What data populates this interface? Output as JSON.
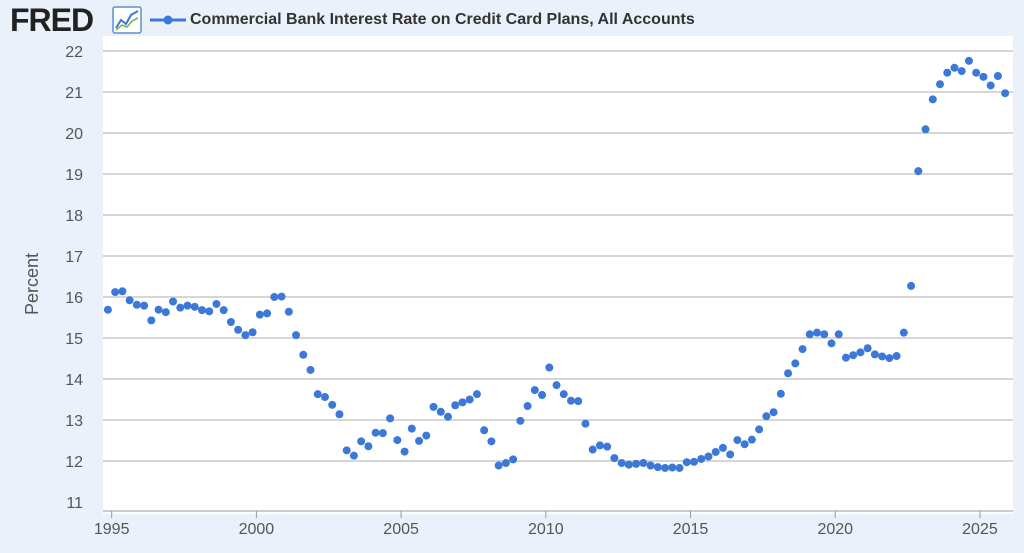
{
  "header": {
    "logo_text": "FRED",
    "legend_label": "Commercial Bank Interest Rate on Credit Card Plans, All Accounts"
  },
  "colors": {
    "series": "#3c78d8",
    "grid": "#c8c8c8",
    "background": "#ebf1fa",
    "plot_background": "#ffffff"
  },
  "chart_data": {
    "type": "scatter",
    "title": "",
    "xlabel": "",
    "ylabel": "Percent",
    "xlim": [
      1994.7,
      2025.9
    ],
    "ylim": [
      11,
      22
    ],
    "x_ticks": [
      "1995",
      "2000",
      "2005",
      "2010",
      "2015",
      "2020",
      "2025"
    ],
    "y_ticks": [
      "11",
      "12",
      "13",
      "14",
      "15",
      "16",
      "17",
      "18",
      "19",
      "20",
      "21",
      "22"
    ],
    "grid": "horizontal",
    "legend": "top-left",
    "series": [
      {
        "name": "Commercial Bank Interest Rate on Credit Card Plans, All Accounts",
        "points": [
          [
            1994.87,
            15.69
          ],
          [
            1995.12,
            16.12
          ],
          [
            1995.37,
            16.14
          ],
          [
            1995.62,
            15.92
          ],
          [
            1995.87,
            15.81
          ],
          [
            1996.12,
            15.79
          ],
          [
            1996.37,
            15.43
          ],
          [
            1996.62,
            15.69
          ],
          [
            1996.87,
            15.63
          ],
          [
            1997.12,
            15.89
          ],
          [
            1997.37,
            15.74
          ],
          [
            1997.62,
            15.79
          ],
          [
            1997.87,
            15.76
          ],
          [
            1998.12,
            15.68
          ],
          [
            1998.37,
            15.65
          ],
          [
            1998.62,
            15.83
          ],
          [
            1998.87,
            15.68
          ],
          [
            1999.12,
            15.39
          ],
          [
            1999.37,
            15.2
          ],
          [
            1999.62,
            15.07
          ],
          [
            1999.87,
            15.14
          ],
          [
            2000.12,
            15.57
          ],
          [
            2000.37,
            15.6
          ],
          [
            2000.62,
            16.0
          ],
          [
            2000.87,
            16.01
          ],
          [
            2001.12,
            15.64
          ],
          [
            2001.37,
            15.07
          ],
          [
            2001.62,
            14.59
          ],
          [
            2001.87,
            14.22
          ],
          [
            2002.12,
            13.63
          ],
          [
            2002.37,
            13.56
          ],
          [
            2002.62,
            13.37
          ],
          [
            2002.87,
            13.14
          ],
          [
            2003.12,
            12.26
          ],
          [
            2003.37,
            12.13
          ],
          [
            2003.62,
            12.48
          ],
          [
            2003.87,
            12.36
          ],
          [
            2004.12,
            12.69
          ],
          [
            2004.37,
            12.68
          ],
          [
            2004.62,
            13.04
          ],
          [
            2004.87,
            12.51
          ],
          [
            2005.12,
            12.23
          ],
          [
            2005.37,
            12.79
          ],
          [
            2005.62,
            12.49
          ],
          [
            2005.87,
            12.62
          ],
          [
            2006.12,
            13.32
          ],
          [
            2006.37,
            13.2
          ],
          [
            2006.62,
            13.08
          ],
          [
            2006.87,
            13.36
          ],
          [
            2007.12,
            13.43
          ],
          [
            2007.37,
            13.5
          ],
          [
            2007.62,
            13.63
          ],
          [
            2007.87,
            12.75
          ],
          [
            2008.12,
            12.48
          ],
          [
            2008.37,
            11.89
          ],
          [
            2008.62,
            11.95
          ],
          [
            2008.87,
            12.04
          ],
          [
            2009.12,
            12.98
          ],
          [
            2009.37,
            13.34
          ],
          [
            2009.62,
            13.73
          ],
          [
            2009.87,
            13.61
          ],
          [
            2010.12,
            14.28
          ],
          [
            2010.37,
            13.85
          ],
          [
            2010.62,
            13.63
          ],
          [
            2010.87,
            13.47
          ],
          [
            2011.12,
            13.46
          ],
          [
            2011.37,
            12.91
          ],
          [
            2011.62,
            12.28
          ],
          [
            2011.87,
            12.38
          ],
          [
            2012.12,
            12.35
          ],
          [
            2012.37,
            12.07
          ],
          [
            2012.62,
            11.95
          ],
          [
            2012.87,
            11.91
          ],
          [
            2013.12,
            11.93
          ],
          [
            2013.37,
            11.95
          ],
          [
            2013.62,
            11.89
          ],
          [
            2013.87,
            11.85
          ],
          [
            2014.12,
            11.83
          ],
          [
            2014.37,
            11.84
          ],
          [
            2014.62,
            11.83
          ],
          [
            2014.87,
            11.97
          ],
          [
            2015.12,
            11.98
          ],
          [
            2015.37,
            12.05
          ],
          [
            2015.62,
            12.11
          ],
          [
            2015.87,
            12.22
          ],
          [
            2016.12,
            12.32
          ],
          [
            2016.37,
            12.16
          ],
          [
            2016.62,
            12.51
          ],
          [
            2016.87,
            12.41
          ],
          [
            2017.12,
            12.52
          ],
          [
            2017.37,
            12.77
          ],
          [
            2017.62,
            13.09
          ],
          [
            2017.87,
            13.19
          ],
          [
            2018.12,
            13.64
          ],
          [
            2018.37,
            14.14
          ],
          [
            2018.62,
            14.38
          ],
          [
            2018.87,
            14.73
          ],
          [
            2019.12,
            15.09
          ],
          [
            2019.37,
            15.13
          ],
          [
            2019.62,
            15.09
          ],
          [
            2019.87,
            14.87
          ],
          [
            2020.12,
            15.09
          ],
          [
            2020.37,
            14.52
          ],
          [
            2020.62,
            14.58
          ],
          [
            2020.87,
            14.65
          ],
          [
            2021.12,
            14.75
          ],
          [
            2021.37,
            14.6
          ],
          [
            2021.62,
            14.55
          ],
          [
            2021.87,
            14.51
          ],
          [
            2022.12,
            14.56
          ],
          [
            2022.37,
            15.13
          ],
          [
            2022.62,
            16.27
          ],
          [
            2022.87,
            19.07
          ],
          [
            2023.12,
            20.09
          ],
          [
            2023.37,
            20.82
          ],
          [
            2023.62,
            21.19
          ],
          [
            2023.87,
            21.47
          ],
          [
            2024.12,
            21.59
          ],
          [
            2024.37,
            21.51
          ],
          [
            2024.62,
            21.76
          ],
          [
            2024.87,
            21.47
          ],
          [
            2025.12,
            21.37
          ],
          [
            2025.37,
            21.16
          ],
          [
            2025.62,
            21.39
          ],
          [
            2025.87,
            20.97
          ]
        ]
      }
    ]
  }
}
